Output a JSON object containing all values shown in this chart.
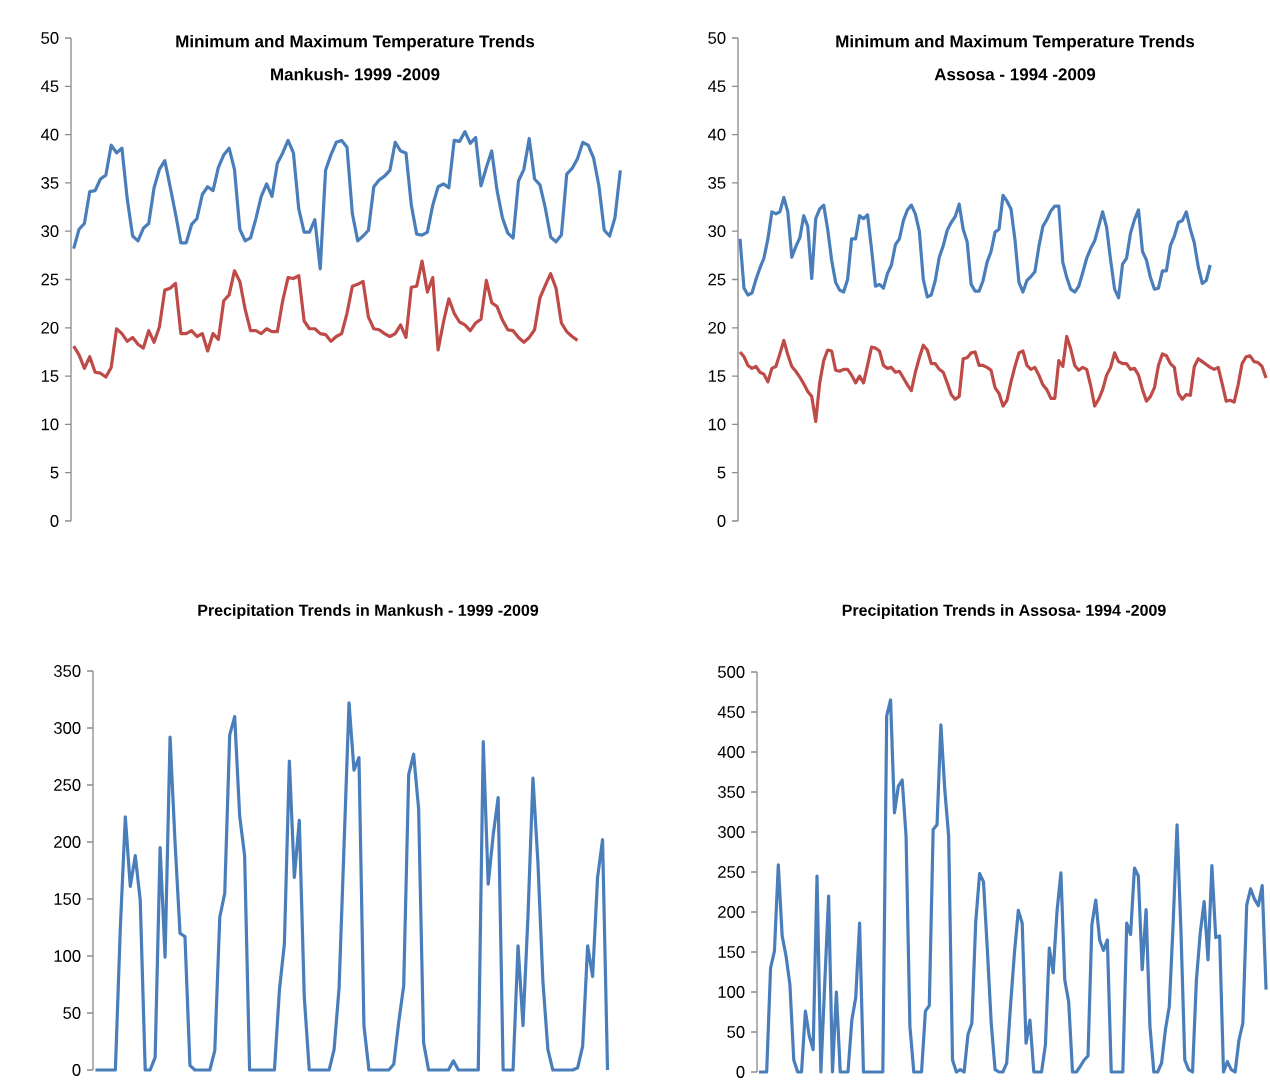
{
  "chart_data": [
    {
      "type": "line",
      "title": "Minimum and Maximum Temperature Trends",
      "subtitle": "Mankush- 1999 -2009",
      "categories": [
        null,
        null,
        null,
        null,
        null,
        null,
        null,
        null,
        null,
        null,
        null,
        null,
        null,
        null,
        null,
        null,
        null,
        null,
        null,
        null,
        null,
        null,
        null,
        null,
        null,
        null,
        null,
        null,
        null,
        null,
        null,
        null,
        null,
        null,
        null,
        null,
        null,
        null,
        null,
        null,
        null,
        null,
        null,
        null,
        null,
        null,
        null,
        null,
        null,
        null,
        null,
        null,
        null,
        null,
        null,
        null,
        null,
        null,
        null,
        null,
        null,
        null,
        null,
        null,
        null,
        null,
        null,
        null,
        null,
        null,
        null,
        null,
        null,
        null,
        null,
        null,
        null,
        null,
        null,
        null,
        null,
        null,
        null,
        null,
        null,
        null,
        null,
        null,
        null,
        null,
        null,
        null,
        null,
        null,
        null,
        null,
        null,
        null,
        null,
        null,
        null,
        null,
        null
      ],
      "series": [
        {
          "color": "#4a7ebb",
          "values": [
            28.2,
            30.2,
            30.8,
            34.1,
            34.2,
            35.4,
            35.8,
            38.9,
            38.1,
            38.6,
            33.3,
            29.5,
            29.0,
            30.3,
            30.8,
            34.5,
            36.4,
            37.3,
            34.6,
            31.8,
            28.8,
            28.8,
            30.7,
            31.3,
            33.8,
            34.6,
            34.2,
            36.6,
            37.9,
            38.6,
            36.4,
            30.2,
            29.0,
            29.3,
            31.3,
            33.6,
            34.9,
            33.6,
            37.0,
            38.1,
            39.4,
            38.1,
            32.3,
            29.9,
            29.9,
            31.2,
            26.1,
            36.3,
            37.9,
            39.2,
            39.4,
            38.7,
            31.8,
            29.0,
            29.5,
            30.1,
            34.6,
            35.3,
            35.7,
            36.3,
            39.2,
            38.3,
            38.1,
            32.7,
            29.7,
            29.6,
            29.9,
            32.7,
            34.6,
            34.9,
            34.5,
            39.4,
            39.3,
            40.3,
            39.1,
            39.7,
            34.7,
            36.6,
            38.3,
            34.2,
            31.4,
            29.8,
            29.3,
            35.2,
            36.4,
            39.6,
            35.4,
            34.8,
            32.4,
            29.4,
            28.9,
            29.6,
            35.9,
            36.5,
            37.5,
            39.2,
            38.9,
            37.6,
            34.7,
            30.1,
            29.5,
            31.4,
            36.3
          ]
        },
        {
          "color": "#be4b48",
          "values": [
            18.1,
            17.2,
            15.8,
            17.0,
            15.4,
            15.3,
            14.9,
            15.9,
            19.9,
            19.4,
            18.6,
            19.0,
            18.3,
            17.9,
            19.7,
            18.5,
            20.1,
            23.9,
            24.1,
            24.6,
            19.4,
            19.4,
            19.7,
            19.1,
            19.4,
            17.6,
            19.4,
            18.8,
            22.8,
            23.4,
            25.9,
            24.8,
            21.9,
            19.7,
            19.7,
            19.4,
            19.9,
            19.6,
            19.6,
            22.8,
            25.2,
            25.1,
            25.4,
            20.7,
            19.9,
            19.9,
            19.4,
            19.3,
            18.6,
            19.1,
            19.4,
            21.5,
            24.3,
            24.5,
            24.8,
            21.1,
            19.9,
            19.8,
            19.4,
            19.1,
            19.4,
            20.3,
            19.0,
            24.2,
            24.3,
            26.9,
            23.7,
            25.2,
            17.7,
            20.6,
            23.0,
            21.5,
            20.6,
            20.3,
            19.7,
            20.5,
            20.9,
            24.9,
            22.6,
            22.2,
            20.8,
            19.8,
            19.7,
            19.0,
            18.5,
            19.0,
            19.8,
            23.1,
            24.4,
            25.6,
            24.1,
            20.5,
            19.6,
            19.1,
            18.7,
            null,
            null,
            null,
            null,
            null,
            null,
            null,
            null
          ]
        }
      ],
      "ylim": [
        0,
        50
      ],
      "yticks": [
        0,
        5,
        10,
        15,
        20,
        25,
        30,
        35,
        40,
        45,
        50
      ],
      "tick_labels": "y",
      "marker": "none",
      "line_style": "solid"
    },
    {
      "type": "line",
      "title": "Minimum and Maximum Temperature Trends",
      "subtitle": "Assosa - 1994 -2009",
      "categories": [
        null,
        null,
        null,
        null,
        null,
        null,
        null,
        null,
        null,
        null,
        null,
        null,
        null,
        null,
        null,
        null,
        null,
        null,
        null,
        null,
        null,
        null,
        null,
        null,
        null,
        null,
        null,
        null,
        null,
        null,
        null,
        null,
        null,
        null,
        null,
        null,
        null,
        null,
        null,
        null,
        null,
        null,
        null,
        null,
        null,
        null,
        null,
        null,
        null,
        null,
        null,
        null,
        null,
        null,
        null,
        null,
        null,
        null,
        null,
        null,
        null,
        null,
        null,
        null,
        null,
        null,
        null,
        null,
        null,
        null,
        null,
        null,
        null,
        null,
        null,
        null,
        null,
        null,
        null,
        null,
        null,
        null,
        null,
        null,
        null,
        null,
        null,
        null,
        null,
        null,
        null,
        null,
        null,
        null,
        null,
        null,
        null,
        null,
        null,
        null,
        null,
        null,
        null,
        null,
        null,
        null,
        null,
        null,
        null,
        null,
        null,
        null,
        null,
        null,
        null,
        null,
        null,
        null,
        null,
        null,
        null,
        null,
        null,
        null,
        null,
        null,
        null,
        null,
        null,
        null,
        null,
        null,
        null
      ],
      "series": [
        {
          "color": "#4a7ebb",
          "values": [
            29.2,
            24.1,
            23.4,
            23.6,
            25.0,
            26.2,
            27.2,
            29.2,
            32.0,
            31.8,
            32.0,
            33.5,
            32.0,
            27.3,
            28.4,
            29.3,
            31.6,
            30.5,
            25.1,
            31.3,
            32.3,
            32.7,
            30.2,
            27.0,
            24.7,
            23.9,
            23.7,
            25.0,
            29.2,
            29.2,
            31.6,
            31.3,
            31.7,
            28.2,
            24.3,
            24.5,
            24.1,
            25.6,
            26.5,
            28.6,
            29.2,
            31.1,
            32.2,
            32.7,
            31.8,
            30.0,
            25.0,
            23.2,
            23.4,
            24.9,
            27.3,
            28.5,
            30.1,
            30.9,
            31.5,
            32.8,
            30.2,
            28.9,
            24.5,
            23.8,
            23.8,
            24.9,
            26.8,
            27.9,
            29.9,
            30.2,
            33.7,
            33.1,
            32.3,
            29.1,
            24.7,
            23.7,
            24.9,
            25.3,
            25.8,
            28.4,
            30.5,
            31.2,
            32.1,
            32.6,
            32.6,
            26.8,
            25.2,
            24.0,
            23.7,
            24.3,
            25.7,
            27.2,
            28.2,
            29.0,
            30.5,
            32.0,
            30.4,
            27.0,
            24.0,
            23.1,
            26.6,
            27.2,
            29.8,
            31.2,
            32.2,
            27.9,
            27.0,
            25.2,
            24.0,
            24.1,
            25.9,
            25.9,
            28.5,
            29.5,
            30.9,
            31.1,
            32.0,
            30.2,
            28.8,
            26.3,
            24.6,
            24.9,
            26.5,
            null,
            null,
            null,
            null,
            null,
            null,
            null,
            null,
            null,
            null,
            null,
            null,
            null,
            null
          ]
        },
        {
          "color": "#be4b48",
          "values": [
            17.5,
            17.0,
            16.1,
            15.8,
            16.0,
            15.4,
            15.2,
            14.4,
            15.8,
            16.0,
            17.3,
            18.7,
            17.2,
            16.0,
            15.5,
            14.9,
            14.2,
            13.4,
            12.9,
            10.3,
            14.3,
            16.6,
            17.7,
            17.6,
            15.6,
            15.5,
            15.7,
            15.7,
            15.1,
            14.3,
            15.0,
            14.3,
            16.1,
            18.0,
            17.9,
            17.6,
            16.1,
            15.8,
            15.9,
            15.4,
            15.5,
            14.8,
            14.1,
            13.5,
            15.4,
            16.9,
            18.2,
            17.7,
            16.3,
            16.3,
            15.7,
            15.4,
            14.3,
            13.1,
            12.6,
            12.9,
            16.8,
            16.9,
            17.4,
            17.5,
            16.1,
            16.1,
            15.9,
            15.6,
            13.8,
            13.2,
            11.9,
            12.5,
            14.4,
            16.0,
            17.4,
            17.6,
            16.1,
            15.7,
            15.9,
            15.1,
            14.1,
            13.6,
            12.7,
            12.7,
            16.6,
            16.0,
            19.1,
            17.8,
            16.1,
            15.6,
            15.9,
            15.7,
            14.0,
            11.9,
            12.6,
            13.6,
            15.1,
            15.9,
            17.4,
            16.5,
            16.3,
            16.3,
            15.7,
            15.8,
            15.1,
            13.6,
            12.4,
            12.9,
            13.8,
            16.1,
            17.3,
            17.1,
            16.3,
            15.9,
            13.2,
            12.6,
            13.1,
            13.0,
            16.0,
            16.8,
            16.5,
            16.2,
            15.9,
            15.7,
            15.9,
            14.2,
            12.4,
            12.5,
            12.3,
            14.1,
            16.3,
            17.0,
            17.1,
            16.5,
            16.4,
            16.0,
            14.8
          ]
        }
      ],
      "ylim": [
        0,
        50
      ],
      "yticks": [
        0,
        5,
        10,
        15,
        20,
        25,
        30,
        35,
        40,
        45,
        50
      ],
      "tick_labels": "y",
      "marker": "none",
      "line_style": "solid"
    },
    {
      "type": "line",
      "title": "Precipitation Trends in Mankush - 1999 -2009",
      "categories": [
        null,
        null,
        null,
        null,
        null,
        null,
        null,
        null,
        null,
        null,
        null,
        null,
        null,
        null,
        null,
        null,
        null,
        null,
        null,
        null,
        null,
        null,
        null,
        null,
        null,
        null,
        null,
        null,
        null,
        null,
        null,
        null,
        null,
        null,
        null,
        null,
        null,
        null,
        null,
        null,
        null,
        null,
        null,
        null,
        null,
        null,
        null,
        null,
        null,
        null,
        null,
        null,
        null,
        null,
        null,
        null,
        null,
        null,
        null,
        null,
        null,
        null,
        null,
        null,
        null,
        null,
        null,
        null,
        null,
        null,
        null,
        null,
        null,
        null,
        null,
        null,
        null,
        null,
        null,
        null,
        null,
        null,
        null,
        null,
        null,
        null,
        null,
        null,
        null,
        null,
        null,
        null,
        null,
        null,
        null,
        null,
        null,
        null,
        null,
        null,
        null,
        null,
        null,
        null
      ],
      "series": [
        {
          "color": "#4a7ebb",
          "values": [
            0,
            0,
            0,
            0,
            0,
            125,
            222,
            161,
            188,
            149,
            0,
            0,
            11,
            195,
            99,
            292,
            200,
            120,
            117,
            4,
            0,
            0,
            0,
            0,
            17,
            134,
            155,
            294,
            310,
            223,
            188,
            0,
            0,
            0,
            0,
            0,
            0,
            70,
            111,
            271,
            169,
            219,
            64,
            0,
            0,
            0,
            0,
            0,
            18,
            72,
            197,
            322,
            263,
            274,
            39,
            0,
            0,
            0,
            0,
            0,
            5,
            42,
            74,
            259,
            277,
            229,
            24,
            0,
            0,
            0,
            0,
            0,
            8,
            0,
            0,
            0,
            0,
            0,
            288,
            163,
            206,
            239,
            0,
            0,
            0,
            109,
            39,
            135,
            256,
            182,
            78,
            18,
            0,
            0,
            0,
            0,
            0,
            2,
            21,
            109,
            82,
            169,
            202,
            0
          ]
        }
      ],
      "ylim": [
        0,
        350
      ],
      "yticks": [
        0,
        50,
        100,
        150,
        200,
        250,
        300,
        350
      ],
      "tick_labels": "y",
      "marker": "none",
      "line_style": "solid"
    },
    {
      "type": "line",
      "title": "Precipitation Trends in Assosa- 1994 -2009",
      "categories": [
        null,
        null,
        null,
        null,
        null,
        null,
        null,
        null,
        null,
        null,
        null,
        null,
        null,
        null,
        null,
        null,
        null,
        null,
        null,
        null,
        null,
        null,
        null,
        null,
        null,
        null,
        null,
        null,
        null,
        null,
        null,
        null,
        null,
        null,
        null,
        null,
        null,
        null,
        null,
        null,
        null,
        null,
        null,
        null,
        null,
        null,
        null,
        null,
        null,
        null,
        null,
        null,
        null,
        null,
        null,
        null,
        null,
        null,
        null,
        null,
        null,
        null,
        null,
        null,
        null,
        null,
        null,
        null,
        null,
        null,
        null,
        null,
        null,
        null,
        null,
        null,
        null,
        null,
        null,
        null,
        null,
        null,
        null,
        null,
        null,
        null,
        null,
        null,
        null,
        null,
        null,
        null,
        null,
        null,
        null,
        null,
        null,
        null,
        null,
        null,
        null,
        null,
        null,
        null,
        null,
        null,
        null,
        null,
        null,
        null,
        null,
        null,
        null,
        null,
        null,
        null,
        null,
        null,
        null,
        null,
        null,
        null,
        null,
        null,
        null,
        null,
        null,
        null,
        null,
        null,
        null,
        null
      ],
      "series": [
        {
          "color": "#4a7ebb",
          "values": [
            0,
            0,
            0,
            130,
            151,
            259,
            170,
            145,
            109,
            15,
            0,
            0,
            76,
            45,
            28,
            245,
            0,
            111,
            220,
            0,
            100,
            0,
            0,
            0,
            65,
            93,
            186,
            0,
            0,
            0,
            0,
            0,
            0,
            445,
            465,
            324,
            357,
            365,
            295,
            57,
            0,
            0,
            0,
            76,
            83,
            303,
            309,
            434,
            353,
            295,
            15,
            0,
            3,
            0,
            47,
            61,
            188,
            248,
            238,
            153,
            61,
            3,
            0,
            0,
            11,
            84,
            149,
            202,
            186,
            36,
            65,
            0,
            0,
            0,
            34,
            155,
            124,
            201,
            249,
            115,
            88,
            0,
            0,
            7,
            15,
            20,
            184,
            215,
            165,
            152,
            165,
            0,
            0,
            0,
            0,
            186,
            172,
            255,
            245,
            128,
            203,
            57,
            0,
            0,
            11,
            53,
            82,
            186,
            309,
            178,
            15,
            3,
            0,
            115,
            174,
            213,
            140,
            258,
            168,
            170,
            0,
            13,
            3,
            0,
            40,
            61,
            209,
            229,
            216,
            208,
            233,
            103
          ]
        }
      ],
      "ylim": [
        0,
        500
      ],
      "yticks": [
        0,
        50,
        100,
        150,
        200,
        250,
        300,
        350,
        400,
        450,
        500
      ],
      "tick_labels": "y",
      "marker": "none",
      "line_style": "solid"
    }
  ]
}
